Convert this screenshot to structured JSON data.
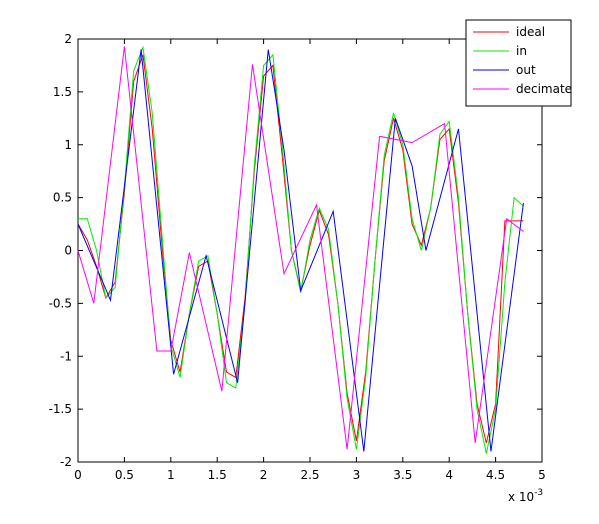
{
  "chart_data": {
    "type": "line",
    "x_multiplier": "x 10",
    "x_multiplier_exp": "-3",
    "xlim": [
      0,
      5
    ],
    "xticks": [
      0,
      0.5,
      1,
      1.5,
      2,
      2.5,
      3,
      3.5,
      4,
      4.5,
      5
    ],
    "ylim": [
      -2,
      2
    ],
    "yticks": [
      -2,
      -1.5,
      -1,
      -0.5,
      0,
      0.5,
      1,
      1.5,
      2
    ],
    "grid": false,
    "legend": "upper right",
    "series": [
      {
        "name": "ideal",
        "color": "#ff0000",
        "x": [
          0,
          0.1,
          0.2,
          0.3,
          0.4,
          0.5,
          0.6,
          0.7,
          0.8,
          0.9,
          1.0,
          1.1,
          1.2,
          1.3,
          1.4,
          1.5,
          1.6,
          1.7,
          1.8,
          1.9,
          2.0,
          2.1,
          2.2,
          2.3,
          2.4,
          2.5,
          2.6,
          2.7,
          2.8,
          2.9,
          3.0,
          3.1,
          3.2,
          3.3,
          3.4,
          3.5,
          3.6,
          3.7,
          3.8,
          3.9,
          4.0,
          4.1,
          4.2,
          4.3,
          4.4,
          4.5,
          4.6,
          4.7,
          4.8
        ],
        "values": [
          0.25,
          0.1,
          -0.15,
          -0.45,
          -0.3,
          0.55,
          1.6,
          1.85,
          1.15,
          0.1,
          -0.85,
          -1.15,
          -0.6,
          -0.15,
          -0.1,
          -0.6,
          -1.15,
          -1.2,
          -0.45,
          0.75,
          1.65,
          1.75,
          0.9,
          0.0,
          -0.38,
          0.05,
          0.38,
          0.15,
          -0.5,
          -1.35,
          -1.8,
          -1.15,
          -0.1,
          0.85,
          1.25,
          0.95,
          0.25,
          0.05,
          0.4,
          1.05,
          1.15,
          0.45,
          -0.6,
          -1.45,
          -1.82,
          -1.45,
          0.28,
          0.28,
          0.28
        ]
      },
      {
        "name": "in",
        "color": "#00ee00",
        "x": [
          0,
          0.1,
          0.2,
          0.3,
          0.4,
          0.5,
          0.6,
          0.7,
          0.8,
          0.9,
          1.0,
          1.1,
          1.2,
          1.3,
          1.4,
          1.5,
          1.6,
          1.7,
          1.8,
          1.9,
          2.0,
          2.1,
          2.2,
          2.3,
          2.4,
          2.5,
          2.6,
          2.7,
          2.8,
          2.9,
          3.0,
          3.1,
          3.2,
          3.3,
          3.4,
          3.5,
          3.6,
          3.7,
          3.8,
          3.9,
          4.0,
          4.1,
          4.2,
          4.3,
          4.4,
          4.5,
          4.6,
          4.7,
          4.8
        ],
        "values": [
          0.3,
          0.3,
          0.0,
          -0.45,
          -0.35,
          0.6,
          1.7,
          1.92,
          1.3,
          0.2,
          -0.9,
          -1.2,
          -0.6,
          -0.1,
          -0.05,
          -0.6,
          -1.25,
          -1.3,
          -0.5,
          0.8,
          1.75,
          1.85,
          1.0,
          0.0,
          -0.4,
          0.1,
          0.4,
          0.2,
          -0.5,
          -1.4,
          -1.88,
          -1.2,
          -0.1,
          0.9,
          1.3,
          1.0,
          0.3,
          0.0,
          0.4,
          1.1,
          1.22,
          0.5,
          -0.6,
          -1.5,
          -1.92,
          -1.5,
          -0.3,
          0.5,
          0.42
        ]
      },
      {
        "name": "out",
        "color": "#0000ff",
        "x": [
          0,
          0.35,
          0.68,
          1.03,
          1.38,
          1.72,
          2.05,
          2.22,
          2.4,
          2.75,
          3.08,
          3.42,
          3.6,
          3.75,
          4.1,
          4.45,
          4.8
        ],
        "values": [
          0.25,
          -0.47,
          1.9,
          -1.17,
          -0.05,
          -1.25,
          1.9,
          0.95,
          -0.38,
          0.37,
          -1.9,
          1.25,
          0.8,
          0.0,
          1.15,
          -1.9,
          0.45
        ]
      },
      {
        "name": "decimate",
        "color": "#ff00ff",
        "x": [
          0,
          0.17,
          0.5,
          0.85,
          1.0,
          1.2,
          1.55,
          1.88,
          2.22,
          2.57,
          2.9,
          3.25,
          3.6,
          3.95,
          4.28,
          4.62,
          4.8
        ],
        "values": [
          0.0,
          -0.5,
          1.93,
          -0.95,
          -0.95,
          -0.02,
          -1.33,
          1.76,
          -0.22,
          0.43,
          -1.88,
          1.08,
          1.02,
          1.2,
          -1.82,
          0.3,
          0.18
        ]
      }
    ]
  }
}
